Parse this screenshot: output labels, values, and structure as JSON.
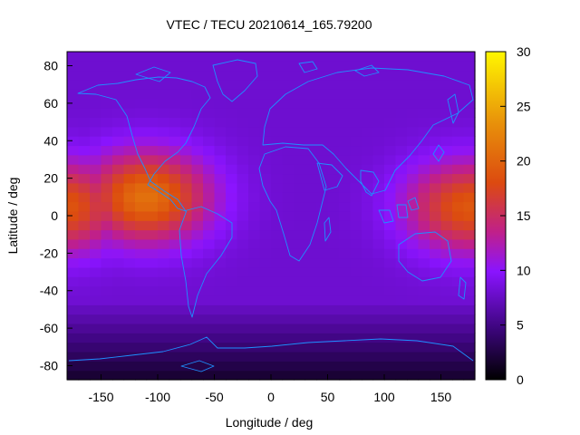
{
  "chart_data": {
    "type": "heatmap",
    "title": "VTEC / TECU 20210614_165.79200",
    "xlabel": "Longitude / deg",
    "ylabel": "Latitude / deg",
    "xlim": [
      -180,
      180
    ],
    "ylim": [
      -87.5,
      87.5
    ],
    "x_ticks": [
      -150,
      -100,
      -50,
      0,
      50,
      100,
      150
    ],
    "y_ticks": [
      -80,
      -60,
      -40,
      -20,
      0,
      20,
      40,
      60,
      80
    ],
    "colorbar": {
      "min": 0,
      "max": 30,
      "ticks": [
        0,
        5,
        10,
        15,
        20,
        25,
        30
      ]
    },
    "grid": false,
    "peak_regions": [
      {
        "lon": -110,
        "lat": 10,
        "value": 21
      },
      {
        "lon": 175,
        "lat": 5,
        "value": 19
      }
    ],
    "background_value": 8,
    "polar_value": 2
  }
}
